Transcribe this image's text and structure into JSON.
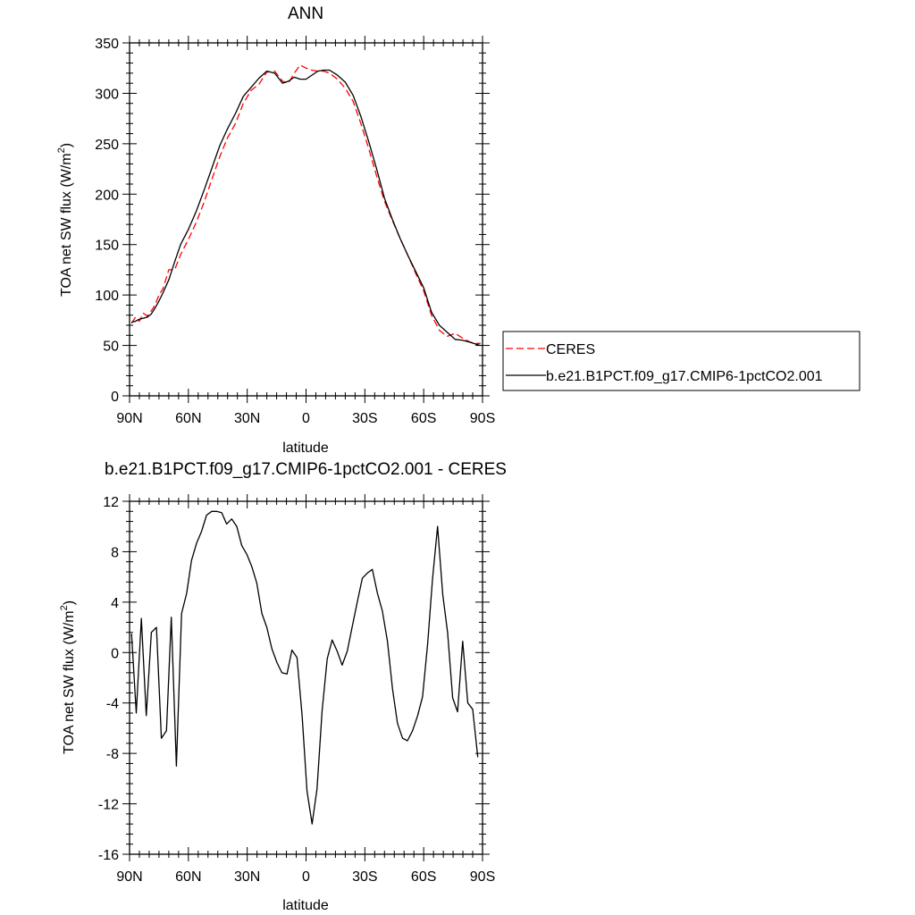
{
  "chart_data": [
    {
      "type": "line",
      "title": "ANN",
      "xlabel": "latitude",
      "ylabel_prefix": "TOA net SW flux (W/m",
      "ylabel_sup": "2",
      "ylabel_suffix": ")",
      "xlim": [
        90,
        -90
      ],
      "ylim": [
        0,
        350
      ],
      "xticks": [
        {
          "value": 90,
          "label": "90N"
        },
        {
          "value": 60,
          "label": "60N"
        },
        {
          "value": 30,
          "label": "30N"
        },
        {
          "value": 0,
          "label": "0"
        },
        {
          "value": -30,
          "label": "30S"
        },
        {
          "value": -60,
          "label": "60S"
        },
        {
          "value": -90,
          "label": "90S"
        }
      ],
      "yticks": [
        0,
        50,
        100,
        150,
        200,
        250,
        300,
        350
      ],
      "legend": {
        "placement": "right"
      },
      "series": [
        {
          "name": "CERES",
          "color": "#ff0000",
          "style": "dashed",
          "x": [
            89,
            87,
            85,
            83,
            81,
            79,
            77,
            75,
            73,
            70,
            67,
            64,
            60,
            56,
            52,
            48,
            44,
            40,
            36,
            32,
            28,
            24,
            20,
            16,
            12,
            9,
            6,
            3,
            0,
            -3,
            -6,
            -9,
            -12,
            -16,
            -20,
            -24,
            -28,
            -32,
            -36,
            -40,
            -44,
            -48,
            -52,
            -56,
            -60,
            -64,
            -68,
            -72,
            -76,
            -80,
            -84,
            -87,
            -89
          ],
          "y": [
            72,
            78,
            74,
            82,
            79,
            84,
            90,
            100,
            106,
            125,
            125,
            140,
            155,
            172,
            192,
            215,
            237,
            256,
            270,
            290,
            303,
            309,
            321,
            322,
            312,
            310,
            320,
            328,
            325,
            323,
            322,
            322,
            320,
            314,
            305,
            292,
            270,
            245,
            218,
            193,
            174,
            156,
            139,
            121,
            104,
            80,
            65,
            59,
            62,
            57,
            53,
            52,
            52
          ]
        },
        {
          "name": "b.e21.B1PCT.f09_g17.CMIP6-1pctCO2.001",
          "color": "#000000",
          "style": "solid",
          "x": [
            89,
            87,
            85,
            83,
            81,
            79,
            77,
            75,
            73,
            70,
            67,
            64,
            60,
            56,
            52,
            48,
            44,
            40,
            36,
            32,
            28,
            24,
            20,
            16,
            12,
            9,
            6,
            3,
            0,
            -3,
            -6,
            -9,
            -12,
            -16,
            -20,
            -24,
            -28,
            -32,
            -36,
            -40,
            -44,
            -48,
            -52,
            -56,
            -60,
            -64,
            -68,
            -72,
            -76,
            -80,
            -84,
            -87,
            -89
          ],
          "y": [
            73,
            74,
            76,
            77,
            78,
            81,
            87,
            94,
            102,
            115,
            133,
            150,
            165,
            183,
            204,
            226,
            248,
            265,
            280,
            297,
            306,
            315,
            322,
            320,
            310,
            312,
            316,
            314,
            314,
            318,
            322,
            323,
            323,
            318,
            311,
            298,
            277,
            252,
            225,
            196,
            175,
            156,
            139,
            123,
            107,
            83,
            70,
            63,
            56,
            55,
            53,
            51,
            50
          ]
        }
      ]
    },
    {
      "type": "line",
      "title": "b.e21.B1PCT.f09_g17.CMIP6-1pctCO2.001 - CERES",
      "xlabel": "latitude",
      "ylabel_prefix": "TOA net SW flux (W/m",
      "ylabel_sup": "2",
      "ylabel_suffix": ")",
      "xlim": [
        90,
        -90
      ],
      "ylim": [
        -16,
        12
      ],
      "xticks": [
        {
          "value": 90,
          "label": "90N"
        },
        {
          "value": 60,
          "label": "60N"
        },
        {
          "value": 30,
          "label": "30N"
        },
        {
          "value": 0,
          "label": "0"
        },
        {
          "value": -30,
          "label": "30S"
        },
        {
          "value": -60,
          "label": "60S"
        },
        {
          "value": -90,
          "label": "90S"
        }
      ],
      "yticks": [
        -16,
        -12,
        -8,
        -4,
        0,
        4,
        8,
        12
      ],
      "series": [
        {
          "color": "#000000",
          "style": "solid",
          "x": [
            89,
            86.6,
            84,
            81.5,
            78.9,
            76.3,
            73.8,
            71.2,
            68.7,
            66.1,
            63.5,
            60.9,
            58.4,
            55.8,
            53.3,
            50.7,
            48.1,
            45.6,
            43,
            40.5,
            37.9,
            35.3,
            32.8,
            30.2,
            27.6,
            25.1,
            22.5,
            20,
            17.4,
            14.8,
            12.3,
            9.7,
            7.2,
            4.6,
            2,
            -0.5,
            -3.1,
            -5.6,
            -8.2,
            -10.8,
            -13.3,
            -15.9,
            -18.4,
            -21,
            -23.6,
            -26.1,
            -28.7,
            -31.2,
            -33.8,
            -36.4,
            -38.9,
            -41.5,
            -44.1,
            -46.6,
            -49.2,
            -51.7,
            -54.3,
            -56.9,
            -59.4,
            -62,
            -64.5,
            -67.1,
            -69.7,
            -72.2,
            -74.8,
            -77.3,
            -79.9,
            -82.5,
            -85,
            -87.6
          ],
          "y": [
            1.5,
            -4.8,
            2.7,
            -5.0,
            1.6,
            2.0,
            -6.8,
            -6.2,
            2.8,
            -9.0,
            3.1,
            4.7,
            7.3,
            8.7,
            9.6,
            10.9,
            11.2,
            11.2,
            11.1,
            10.2,
            10.6,
            10.0,
            8.5,
            7.8,
            6.8,
            5.5,
            3.1,
            2.0,
            0.3,
            -0.8,
            -1.6,
            -1.7,
            0.2,
            -0.4,
            -5.0,
            -11.0,
            -13.6,
            -10.8,
            -4.6,
            -0.5,
            1.0,
            0.1,
            -1.0,
            0.1,
            2.1,
            4.0,
            5.9,
            6.3,
            6.6,
            4.7,
            3.3,
            0.9,
            -2.9,
            -5.6,
            -6.8,
            -7.0,
            -6.2,
            -5.0,
            -3.5,
            0.7,
            5.8,
            10.0,
            4.6,
            1.6,
            -3.6,
            -4.7,
            0.9,
            -4.0,
            -4.5,
            -8.3
          ]
        }
      ]
    }
  ]
}
